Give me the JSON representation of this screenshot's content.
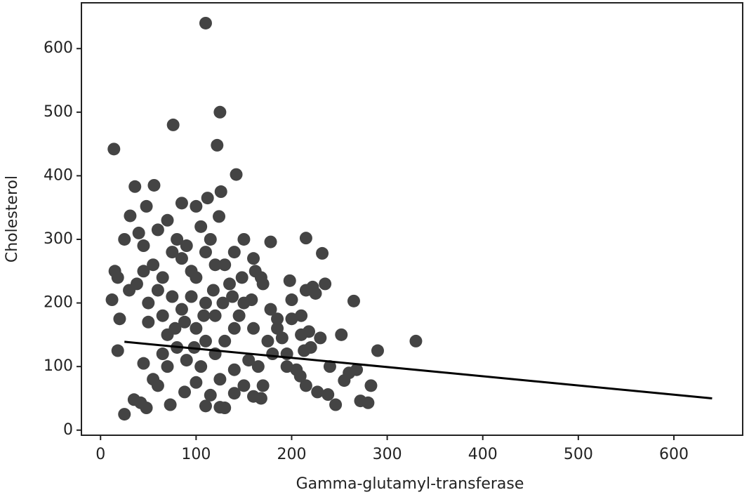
{
  "chart_data": {
    "type": "scatter",
    "xlabel": "Gamma-glutamyl-transferase",
    "ylabel": "Cholesterol",
    "xlim": [
      -20,
      672
    ],
    "ylim": [
      -8,
      672
    ],
    "xticks": [
      0,
      100,
      200,
      300,
      400,
      500,
      600
    ],
    "yticks": [
      0,
      100,
      200,
      300,
      400,
      500,
      600
    ],
    "grid": false,
    "series": [
      {
        "color": "#444444",
        "x": [
          110,
          125,
          76,
          122,
          14,
          142,
          126,
          36,
          56,
          48,
          85,
          100,
          112,
          31,
          124,
          70,
          25,
          215,
          232,
          178,
          265,
          290,
          330,
          252,
          283,
          280,
          272,
          246,
          255,
          268,
          227,
          238,
          215,
          209,
          25,
          35,
          42,
          48,
          73,
          110,
          125,
          130,
          160,
          168,
          170,
          195,
          205,
          18,
          20,
          12,
          15,
          18,
          45,
          55,
          60,
          88,
          100,
          115,
          140,
          150,
          213,
          220,
          218,
          230,
          235,
          222,
          198,
          200,
          190,
          185,
          178,
          168,
          162,
          158,
          145,
          60,
          80,
          90,
          45,
          40,
          38,
          30,
          50,
          65,
          70,
          80,
          90,
          105,
          120,
          130,
          140,
          150,
          135,
          120,
          110,
          100,
          95,
          85,
          75,
          65,
          55,
          110,
          120,
          100,
          130,
          140,
          150,
          160,
          170,
          175,
          180,
          155,
          140,
          125,
          115,
          105,
          95,
          85,
          75,
          65,
          110,
          118,
          128,
          138,
          148,
          108,
          98,
          88,
          78,
          60,
          50,
          45,
          70,
          160,
          165,
          185,
          200,
          210,
          215,
          225,
          210,
          195,
          240,
          260
        ],
        "values": [
          640,
          500,
          480,
          448,
          442,
          402,
          375,
          383,
          385,
          352,
          357,
          352,
          365,
          337,
          336,
          330,
          300,
          302,
          278,
          296,
          203,
          125,
          140,
          150,
          70,
          43,
          46,
          40,
          78,
          95,
          60,
          56,
          70,
          85,
          25,
          48,
          43,
          35,
          40,
          38,
          36,
          35,
          53,
          50,
          70,
          100,
          95,
          125,
          175,
          205,
          250,
          240,
          105,
          80,
          70,
          60,
          75,
          55,
          58,
          70,
          125,
          130,
          155,
          145,
          230,
          225,
          235,
          205,
          145,
          160,
          190,
          240,
          250,
          205,
          180,
          315,
          300,
          290,
          290,
          310,
          230,
          220,
          200,
          180,
          150,
          130,
          110,
          100,
          120,
          140,
          160,
          200,
          230,
          260,
          280,
          240,
          210,
          190,
          210,
          240,
          260,
          200,
          180,
          160,
          260,
          280,
          300,
          270,
          230,
          140,
          120,
          110,
          95,
          80,
          300,
          320,
          250,
          270,
          280,
          120,
          140,
          220,
          200,
          210,
          240,
          180,
          130,
          170,
          160,
          220,
          170,
          250,
          100,
          160,
          100,
          175,
          175,
          180,
          220,
          215,
          150,
          120,
          100,
          90
        ]
      }
    ],
    "fit": {
      "color": "#000000",
      "x": [
        25,
        640
      ],
      "values": [
        139,
        50
      ]
    }
  }
}
